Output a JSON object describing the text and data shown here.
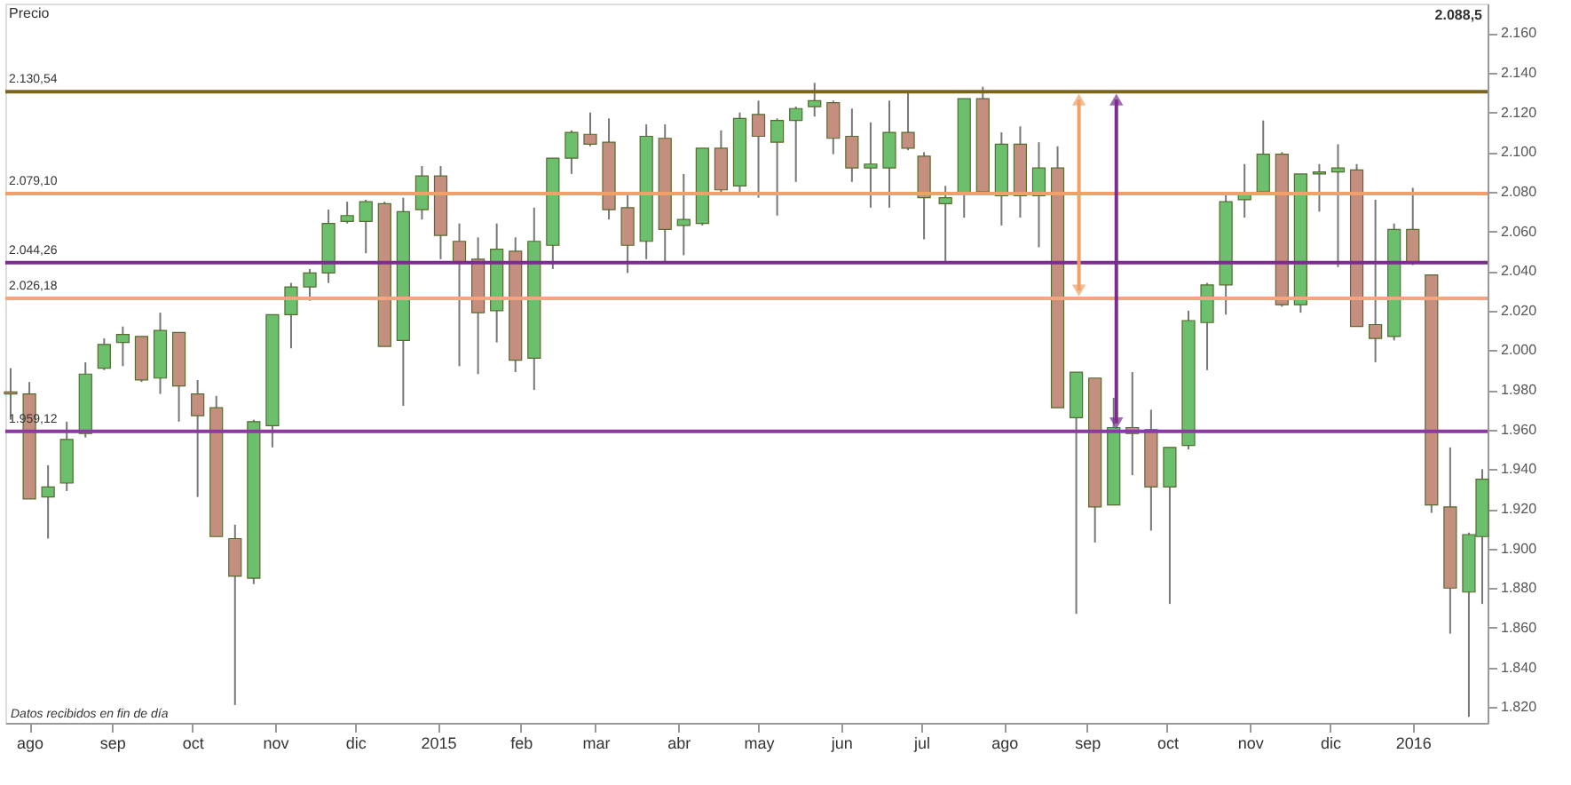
{
  "chart_data": {
    "type": "candlestick",
    "ylabel": "Precio",
    "annotations": [
      "Datos recibidos en fin de día",
      "2.088,5"
    ],
    "x": [
      "2014-07-25",
      "2014-08-01",
      "2014-08-08",
      "2014-08-15",
      "2014-08-22",
      "2014-08-29",
      "2014-09-05",
      "2014-09-12",
      "2014-09-19",
      "2014-09-26",
      "2014-10-03",
      "2014-10-10",
      "2014-10-17",
      "2014-10-24",
      "2014-10-31",
      "2014-11-07",
      "2014-11-14",
      "2014-11-21",
      "2014-11-28",
      "2014-12-05",
      "2014-12-12",
      "2014-12-19",
      "2014-12-26",
      "2015-01-02",
      "2015-01-09",
      "2015-01-16",
      "2015-01-23",
      "2015-01-30",
      "2015-02-06",
      "2015-02-13",
      "2015-02-20",
      "2015-02-27",
      "2015-03-06",
      "2015-03-13",
      "2015-03-20",
      "2015-03-27",
      "2015-04-03",
      "2015-04-10",
      "2015-04-17",
      "2015-04-24",
      "2015-05-01",
      "2015-05-08",
      "2015-05-15",
      "2015-05-22",
      "2015-05-29",
      "2015-06-05",
      "2015-06-12",
      "2015-06-19",
      "2015-06-26",
      "2015-07-02",
      "2015-07-10",
      "2015-07-17",
      "2015-07-24",
      "2015-07-31",
      "2015-08-07",
      "2015-08-14",
      "2015-08-21",
      "2015-08-28",
      "2015-09-04",
      "2015-09-11",
      "2015-09-18",
      "2015-09-25",
      "2015-10-02",
      "2015-10-09",
      "2015-10-16",
      "2015-10-23",
      "2015-10-30",
      "2015-11-06",
      "2015-11-13",
      "2015-11-20",
      "2015-11-27",
      "2015-12-04",
      "2015-12-11",
      "2015-12-18",
      "2015-12-25",
      "2016-01-01",
      "2016-01-08",
      "2016-01-15",
      "2016-01-22",
      "2016-01-27"
    ],
    "ohlc": [
      [
        1979,
        1991,
        1965,
        1978
      ],
      [
        1978,
        1984,
        1925,
        1925
      ],
      [
        1926,
        1942,
        1905,
        1931
      ],
      [
        1933,
        1964,
        1929,
        1955
      ],
      [
        1958,
        1994,
        1956,
        1988
      ],
      [
        1991,
        2006,
        1990,
        2003
      ],
      [
        2004,
        2012,
        1992,
        2008
      ],
      [
        2007,
        2007,
        1984,
        1985
      ],
      [
        1986,
        2019,
        1978,
        2010
      ],
      [
        2009,
        2009,
        1964,
        1982
      ],
      [
        1978,
        1985,
        1926,
        1967
      ],
      [
        1971,
        1977,
        1906,
        1906
      ],
      [
        1905,
        1912,
        1821,
        1886
      ],
      [
        1885,
        1965,
        1882,
        1964
      ],
      [
        1962,
        2018,
        1951,
        2018
      ],
      [
        2018,
        2034,
        2001,
        2032
      ],
      [
        2032,
        2041,
        2025,
        2039
      ],
      [
        2039,
        2071,
        2034,
        2064
      ],
      [
        2065,
        2075,
        2064,
        2068
      ],
      [
        2065,
        2076,
        2049,
        2075
      ],
      [
        2074,
        2075,
        2002,
        2002
      ],
      [
        2005,
        2077,
        1972,
        2070
      ],
      [
        2071,
        2093,
        2066,
        2088
      ],
      [
        2088,
        2093,
        2046,
        2058
      ],
      [
        2055,
        2064,
        1992,
        2044
      ],
      [
        2046,
        2057,
        1988,
        2019
      ],
      [
        2020,
        2064,
        2004,
        2051
      ],
      [
        2050,
        2057,
        1989,
        1995
      ],
      [
        1996,
        2072,
        1980,
        2055
      ],
      [
        2053,
        2097,
        2041,
        2097
      ],
      [
        2097,
        2111,
        2089,
        2110
      ],
      [
        2109,
        2120,
        2103,
        2104
      ],
      [
        2105,
        2117,
        2066,
        2071
      ],
      [
        2072,
        2080,
        2039,
        2053
      ],
      [
        2055,
        2114,
        2046,
        2108
      ],
      [
        2107,
        2114,
        2045,
        2061
      ],
      [
        2063,
        2089,
        2048,
        2066
      ],
      [
        2064,
        2102,
        2063,
        2102
      ],
      [
        2102,
        2111,
        2079,
        2081
      ],
      [
        2083,
        2120,
        2080,
        2117
      ],
      [
        2119,
        2126,
        2077,
        2108
      ],
      [
        2105,
        2117,
        2068,
        2116
      ],
      [
        2116,
        2123,
        2085,
        2122
      ],
      [
        2123,
        2135,
        2118,
        2126
      ],
      [
        2125,
        2126,
        2099,
        2107
      ],
      [
        2108,
        2122,
        2085,
        2092
      ],
      [
        2092,
        2115,
        2072,
        2094
      ],
      [
        2092,
        2126,
        2072,
        2110
      ],
      [
        2110,
        2130,
        2101,
        2102
      ],
      [
        2098,
        2100,
        2056,
        2077
      ],
      [
        2074,
        2083,
        2044,
        2077
      ],
      [
        2079,
        2127,
        2067,
        2127
      ],
      [
        2127,
        2133,
        2079,
        2080
      ],
      [
        2078,
        2110,
        2063,
        2104
      ],
      [
        2104,
        2113,
        2067,
        2078
      ],
      [
        2078,
        2105,
        2052,
        2092
      ],
      [
        2092,
        2103,
        1971,
        1971
      ],
      [
        1966,
        1989,
        1867,
        1989
      ],
      [
        1986,
        1986,
        1903,
        1921
      ],
      [
        1922,
        1976,
        1922,
        1961
      ],
      [
        1961,
        1989,
        1937,
        1958
      ],
      [
        1960,
        1970,
        1909,
        1931
      ],
      [
        1931,
        1951,
        1872,
        1951
      ],
      [
        1952,
        2020,
        1950,
        2015
      ],
      [
        2014,
        2034,
        1990,
        2033
      ],
      [
        2033,
        2080,
        2018,
        2075
      ],
      [
        2076,
        2094,
        2067,
        2079
      ],
      [
        2080,
        2116,
        2080,
        2099
      ],
      [
        2099,
        2100,
        2022,
        2023
      ],
      [
        2023,
        2089,
        2019,
        2089
      ],
      [
        2089,
        2094,
        2070,
        2090
      ],
      [
        2090,
        2104,
        2042,
        2092
      ],
      [
        2091,
        2094,
        2012,
        2012
      ],
      [
        2013,
        2076,
        1994,
        2006
      ],
      [
        2007,
        2064,
        2005,
        2061
      ],
      [
        2061,
        2082,
        2043,
        2044
      ],
      [
        2038,
        2038,
        1918,
        1922
      ],
      [
        1921,
        1951,
        1857,
        1880
      ],
      [
        1878,
        1908,
        1815,
        1907
      ],
      [
        1906,
        1940,
        1872,
        1935
      ]
    ],
    "colors": [
      "#c58f80",
      "#c58f80",
      "#6cbf6c",
      "#6cbf6c",
      "#6cbf6c",
      "#6cbf6c",
      "#6cbf6c",
      "#c58f80",
      "#6cbf6c",
      "#c58f80",
      "#c58f80",
      "#c58f80",
      "#c58f80",
      "#6cbf6c",
      "#6cbf6c",
      "#6cbf6c",
      "#6cbf6c",
      "#6cbf6c",
      "#6cbf6c",
      "#6cbf6c",
      "#c58f80",
      "#6cbf6c",
      "#6cbf6c",
      "#c58f80",
      "#c58f80",
      "#c58f80",
      "#6cbf6c",
      "#c58f80",
      "#6cbf6c",
      "#6cbf6c",
      "#6cbf6c",
      "#c58f80",
      "#c58f80",
      "#c58f80",
      "#6cbf6c",
      "#c58f80",
      "#6cbf6c",
      "#6cbf6c",
      "#c58f80",
      "#6cbf6c",
      "#c58f80",
      "#6cbf6c",
      "#6cbf6c",
      "#6cbf6c",
      "#c58f80",
      "#c58f80",
      "#6cbf6c",
      "#6cbf6c",
      "#c58f80",
      "#c58f80",
      "#6cbf6c",
      "#6cbf6c",
      "#c58f80",
      "#6cbf6c",
      "#c58f80",
      "#6cbf6c",
      "#c58f80",
      "#6cbf6c",
      "#c58f80",
      "#6cbf6c",
      "#c58f80",
      "#c58f80",
      "#6cbf6c",
      "#6cbf6c",
      "#6cbf6c",
      "#6cbf6c",
      "#6cbf6c",
      "#6cbf6c",
      "#c58f80",
      "#6cbf6c",
      "#6cbf6c",
      "#6cbf6c",
      "#c58f80",
      "#c58f80",
      "#6cbf6c",
      "#c58f80",
      "#c58f80",
      "#c58f80",
      "#6cbf6c",
      "#6cbf6c"
    ],
    "xlim": [
      "2014-07-23",
      "2016-01-29"
    ],
    "xticks": [
      {
        "value": "2014-08-01",
        "label": "ago"
      },
      {
        "value": "2014-09-01",
        "label": "sep"
      },
      {
        "value": "2014-10-01",
        "label": "oct"
      },
      {
        "value": "2014-11-01",
        "label": "nov"
      },
      {
        "value": "2014-12-01",
        "label": "dic"
      },
      {
        "value": "2015-01-01",
        "label": "2015"
      },
      {
        "value": "2015-02-01",
        "label": "feb"
      },
      {
        "value": "2015-03-01",
        "label": "mar"
      },
      {
        "value": "2015-04-01",
        "label": "abr"
      },
      {
        "value": "2015-05-01",
        "label": "may"
      },
      {
        "value": "2015-06-01",
        "label": "jun"
      },
      {
        "value": "2015-07-01",
        "label": "jul"
      },
      {
        "value": "2015-08-01",
        "label": "ago"
      },
      {
        "value": "2015-09-01",
        "label": "sep"
      },
      {
        "value": "2015-10-01",
        "label": "oct"
      },
      {
        "value": "2015-11-01",
        "label": "nov"
      },
      {
        "value": "2015-12-01",
        "label": "dic"
      },
      {
        "value": "2016-01-01",
        "label": "2016"
      }
    ],
    "ylim": [
      1812,
      2175
    ],
    "yticks": [
      {
        "value": 1820,
        "label": "1.820"
      },
      {
        "value": 1840,
        "label": "1.840"
      },
      {
        "value": 1860,
        "label": "1.860"
      },
      {
        "value": 1880,
        "label": "1.880"
      },
      {
        "value": 1900,
        "label": "1.900"
      },
      {
        "value": 1920,
        "label": "1.920"
      },
      {
        "value": 1940,
        "label": "1.940"
      },
      {
        "value": 1960,
        "label": "1.960"
      },
      {
        "value": 1980,
        "label": "1.980"
      },
      {
        "value": 2000,
        "label": "2.000"
      },
      {
        "value": 2020,
        "label": "2.020"
      },
      {
        "value": 2040,
        "label": "2.040"
      },
      {
        "value": 2060,
        "label": "2.060"
      },
      {
        "value": 2080,
        "label": "2.080"
      },
      {
        "value": 2100,
        "label": "2.100"
      },
      {
        "value": 2120,
        "label": "2.120"
      },
      {
        "value": 2140,
        "label": "2.140"
      },
      {
        "value": 2160,
        "label": "2.160"
      }
    ],
    "ref_lines": [
      {
        "axis": "y",
        "value": 2130.54,
        "label": "2.130,54",
        "color": "#7a6420"
      },
      {
        "axis": "y",
        "value": 2079.1,
        "label": "2.079,10",
        "color": "#f0a068"
      },
      {
        "axis": "y",
        "value": 2044.26,
        "label": "2.044,26",
        "color": "#7b2d8e"
      },
      {
        "axis": "y",
        "value": 2026.18,
        "label": "2.026,18",
        "color": "#f4a582"
      },
      {
        "axis": "y",
        "value": 1959.12,
        "label": "1.959,12",
        "color": "#8a3aa0"
      }
    ],
    "grid": false
  }
}
